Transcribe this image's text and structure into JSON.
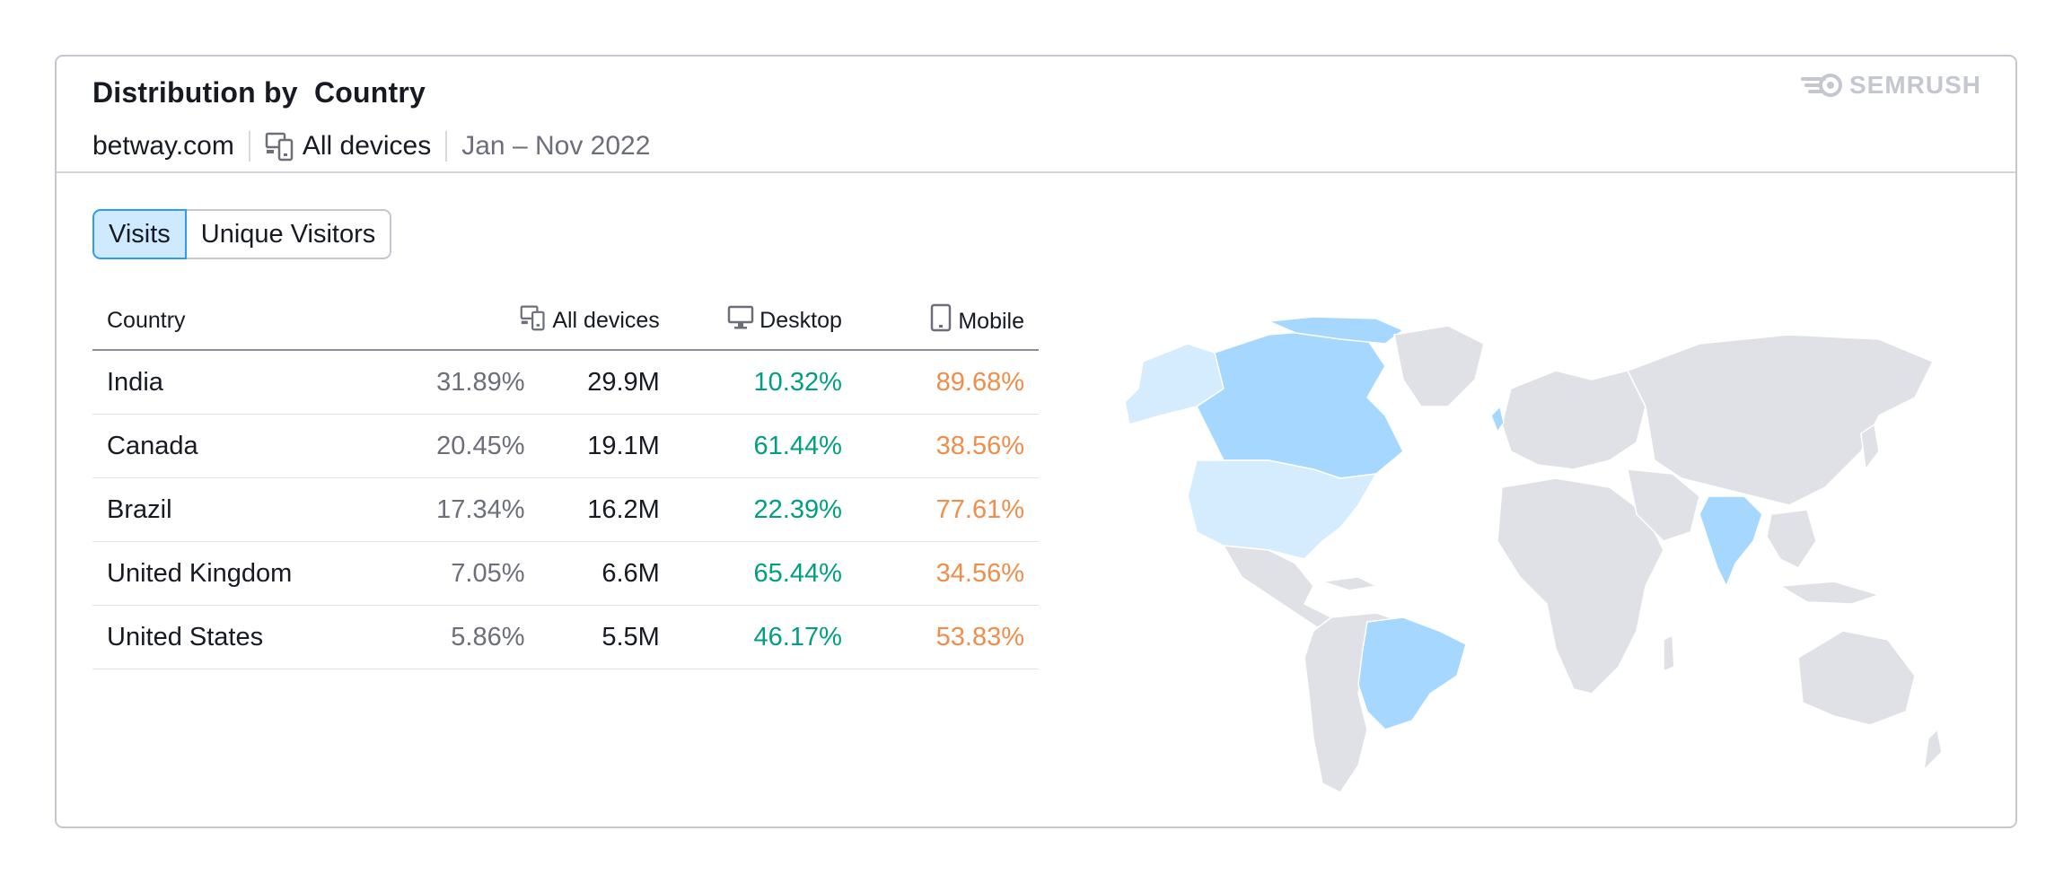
{
  "card": {
    "title": "Distribution by  Country",
    "domain": "betway.com",
    "devices_label": "All devices",
    "date_range": "Jan – Nov 2022",
    "logo_text": "SEMRUSH"
  },
  "tabs": [
    {
      "label": "Visits",
      "active": true
    },
    {
      "label": "Unique Visitors",
      "active": false
    }
  ],
  "table": {
    "headers": {
      "country": "Country",
      "all_devices": "All devices",
      "desktop": "Desktop",
      "mobile": "Mobile"
    },
    "rows": [
      {
        "country": "India",
        "share": "31.89%",
        "visits": "29.9M",
        "desktop": "10.32%",
        "mobile": "89.68%"
      },
      {
        "country": "Canada",
        "share": "20.45%",
        "visits": "19.1M",
        "desktop": "61.44%",
        "mobile": "38.56%"
      },
      {
        "country": "Brazil",
        "share": "17.34%",
        "visits": "16.2M",
        "desktop": "22.39%",
        "mobile": "77.61%"
      },
      {
        "country": "United Kingdom",
        "share": "7.05%",
        "visits": "6.6M",
        "desktop": "65.44%",
        "mobile": "34.56%"
      },
      {
        "country": "United States",
        "share": "5.86%",
        "visits": "5.5M",
        "desktop": "46.17%",
        "mobile": "53.83%"
      }
    ]
  },
  "colors": {
    "desktop": "#009f81",
    "mobile": "#f08d4b",
    "tab_active_bg": "#cfeaff",
    "map_highlight": "#a6d8ff",
    "map_highlight_light": "#d5ecff",
    "map_land": "#e0e1e6"
  },
  "icons": {
    "devices": "devices-icon",
    "desktop": "desktop-icon",
    "mobile": "mobile-icon",
    "logo": "semrush-logo-icon"
  }
}
